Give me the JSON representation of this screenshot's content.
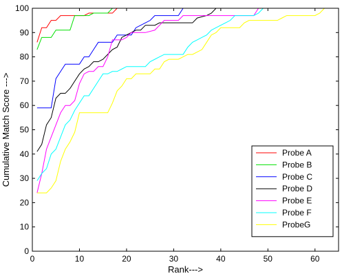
{
  "chart_data": {
    "type": "line",
    "xlabel": "Rank--->",
    "ylabel": "Cumulative Match Score --->",
    "xlim": [
      0,
      65
    ],
    "ylim": [
      0,
      100
    ],
    "xticks": [
      0,
      10,
      20,
      30,
      40,
      50,
      60
    ],
    "yticks": [
      0,
      10,
      20,
      30,
      40,
      50,
      60,
      70,
      80,
      90,
      100
    ],
    "grid": false,
    "legend_position": "bottom-right",
    "series": [
      {
        "name": "Probe A",
        "color": "#ff0000",
        "points": [
          [
            1,
            86
          ],
          [
            2,
            92
          ],
          [
            3,
            92
          ],
          [
            4,
            95
          ],
          [
            5,
            95
          ],
          [
            6,
            97
          ],
          [
            10,
            97
          ],
          [
            11,
            97
          ],
          [
            12,
            98
          ],
          [
            17,
            98
          ],
          [
            18,
            100
          ],
          [
            65,
            100
          ]
        ]
      },
      {
        "name": "Probe B",
        "color": "#00e000",
        "points": [
          [
            1,
            83
          ],
          [
            2,
            88
          ],
          [
            4,
            88
          ],
          [
            5,
            91
          ],
          [
            8,
            91
          ],
          [
            9,
            97
          ],
          [
            12,
            97
          ],
          [
            13,
            98
          ],
          [
            16,
            98
          ],
          [
            17,
            100
          ],
          [
            65,
            100
          ]
        ]
      },
      {
        "name": "Probe C",
        "color": "#0000ff",
        "points": [
          [
            1,
            59
          ],
          [
            4,
            59
          ],
          [
            5,
            71
          ],
          [
            6,
            74
          ],
          [
            7,
            77
          ],
          [
            10,
            77
          ],
          [
            11,
            80
          ],
          [
            12,
            80
          ],
          [
            13,
            83
          ],
          [
            14,
            86
          ],
          [
            17,
            86
          ],
          [
            18,
            89
          ],
          [
            19,
            89
          ],
          [
            20,
            89
          ],
          [
            21,
            89
          ],
          [
            22,
            92
          ],
          [
            24,
            94
          ],
          [
            25,
            95
          ],
          [
            26,
            97
          ],
          [
            31,
            97
          ],
          [
            32,
            100
          ],
          [
            65,
            100
          ]
        ]
      },
      {
        "name": "Probe D",
        "color": "#000000",
        "points": [
          [
            1,
            41
          ],
          [
            2,
            44
          ],
          [
            3,
            52
          ],
          [
            4,
            55
          ],
          [
            5,
            63
          ],
          [
            6,
            65
          ],
          [
            7,
            65
          ],
          [
            8,
            67
          ],
          [
            9,
            70
          ],
          [
            10,
            73
          ],
          [
            11,
            75
          ],
          [
            12,
            76
          ],
          [
            13,
            78
          ],
          [
            14,
            78
          ],
          [
            15,
            79
          ],
          [
            17,
            83
          ],
          [
            18,
            84
          ],
          [
            19,
            88
          ],
          [
            20,
            89
          ],
          [
            21,
            90
          ],
          [
            22,
            91
          ],
          [
            23,
            91
          ],
          [
            24,
            93
          ],
          [
            26,
            93
          ],
          [
            27,
            94
          ],
          [
            34,
            94
          ],
          [
            35,
            96
          ],
          [
            37,
            97
          ],
          [
            38,
            98
          ],
          [
            39,
            100
          ],
          [
            65,
            100
          ]
        ]
      },
      {
        "name": "Probe E",
        "color": "#ff00ff",
        "points": [
          [
            1,
            24
          ],
          [
            2,
            32
          ],
          [
            3,
            42
          ],
          [
            4,
            47
          ],
          [
            5,
            52
          ],
          [
            6,
            57
          ],
          [
            7,
            60
          ],
          [
            8,
            60
          ],
          [
            9,
            62
          ],
          [
            10,
            69
          ],
          [
            11,
            73
          ],
          [
            12,
            74
          ],
          [
            13,
            74
          ],
          [
            14,
            76
          ],
          [
            15,
            76
          ],
          [
            16,
            80
          ],
          [
            17,
            87
          ],
          [
            18,
            87
          ],
          [
            19,
            87
          ],
          [
            20,
            88
          ],
          [
            21,
            90
          ],
          [
            22,
            90
          ],
          [
            23,
            90
          ],
          [
            24,
            90
          ],
          [
            26,
            91
          ],
          [
            27,
            93
          ],
          [
            28,
            95
          ],
          [
            31,
            95
          ],
          [
            32,
            97
          ],
          [
            47,
            97
          ],
          [
            48,
            100
          ],
          [
            65,
            100
          ]
        ]
      },
      {
        "name": "Probe F",
        "color": "#00ffff",
        "points": [
          [
            1,
            29
          ],
          [
            2,
            32
          ],
          [
            3,
            34
          ],
          [
            4,
            40
          ],
          [
            5,
            42
          ],
          [
            6,
            47
          ],
          [
            7,
            52
          ],
          [
            8,
            54
          ],
          [
            9,
            58
          ],
          [
            10,
            61
          ],
          [
            11,
            64
          ],
          [
            12,
            64
          ],
          [
            13,
            67
          ],
          [
            14,
            70
          ],
          [
            15,
            73
          ],
          [
            16,
            73
          ],
          [
            17,
            74
          ],
          [
            18,
            74
          ],
          [
            19,
            75
          ],
          [
            20,
            76
          ],
          [
            24,
            76
          ],
          [
            25,
            78
          ],
          [
            26,
            79
          ],
          [
            27,
            80
          ],
          [
            28,
            81
          ],
          [
            32,
            81
          ],
          [
            33,
            84
          ],
          [
            34,
            86
          ],
          [
            35,
            87
          ],
          [
            36,
            88
          ],
          [
            37,
            89
          ],
          [
            38,
            91
          ],
          [
            39,
            92
          ],
          [
            40,
            93
          ],
          [
            41,
            94
          ],
          [
            42,
            95
          ],
          [
            43,
            97
          ],
          [
            47,
            97
          ],
          [
            48,
            98
          ],
          [
            49,
            100
          ],
          [
            65,
            100
          ]
        ]
      },
      {
        "name": "ProbeG",
        "color": "#ffff00",
        "points": [
          [
            1,
            24
          ],
          [
            2,
            24
          ],
          [
            3,
            24
          ],
          [
            4,
            26
          ],
          [
            5,
            29
          ],
          [
            6,
            37
          ],
          [
            7,
            42
          ],
          [
            8,
            45
          ],
          [
            9,
            49
          ],
          [
            10,
            57
          ],
          [
            16,
            57
          ],
          [
            17,
            61
          ],
          [
            18,
            66
          ],
          [
            19,
            68
          ],
          [
            20,
            71
          ],
          [
            21,
            71
          ],
          [
            22,
            73
          ],
          [
            25,
            73
          ],
          [
            26,
            75
          ],
          [
            27,
            75
          ],
          [
            28,
            78
          ],
          [
            29,
            79
          ],
          [
            31,
            79
          ],
          [
            32,
            80
          ],
          [
            33,
            81
          ],
          [
            34,
            81
          ],
          [
            35,
            82
          ],
          [
            36,
            83
          ],
          [
            37,
            86
          ],
          [
            38,
            89
          ],
          [
            39,
            90
          ],
          [
            40,
            92
          ],
          [
            44,
            92
          ],
          [
            45,
            94
          ],
          [
            46,
            95
          ],
          [
            52,
            95
          ],
          [
            53,
            96
          ],
          [
            54,
            97
          ],
          [
            60,
            97
          ],
          [
            61,
            98
          ],
          [
            62,
            100
          ],
          [
            65,
            100
          ]
        ]
      }
    ]
  }
}
